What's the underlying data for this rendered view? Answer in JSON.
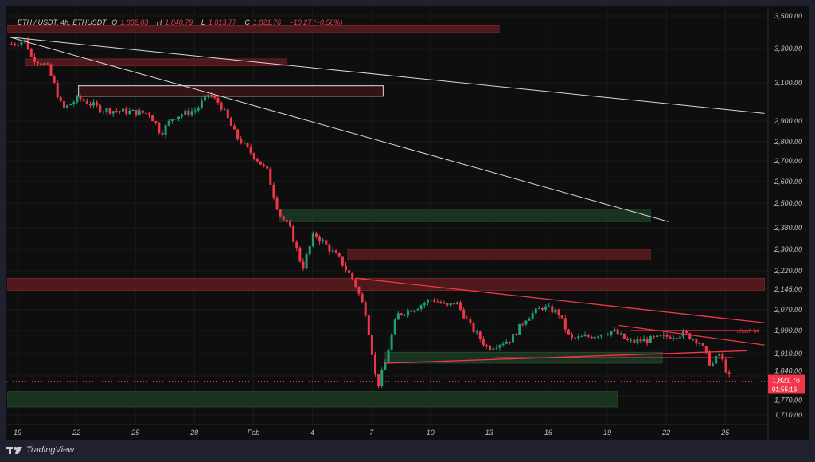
{
  "header": {
    "symbol": "ETH / USDT, 4h, ETHUSDT",
    "open_label": "O",
    "open": "1,832.03",
    "high_label": "H",
    "high": "1,840.79",
    "low_label": "L",
    "low": "1,813.77",
    "close_label": "C",
    "close": "1,821.76",
    "change": "−10.27 (−0.56%)"
  },
  "price_label": {
    "price": "1,821.76",
    "countdown": "01:55:16"
  },
  "annotation": "choch h4",
  "footer": {
    "brand": "TradingView"
  },
  "colors": {
    "up": "#1f9f72",
    "down": "#f2364a",
    "bg": "#0e0e0e",
    "zone_red": "#5a1b1e",
    "zone_green": "#1c3a23"
  },
  "chart_data": {
    "type": "candlestick",
    "title": "ETH / USDT, 4h",
    "y_ticks": [
      "3,500.00",
      "3,300.00",
      "3,100.00",
      "2,900.00",
      "2,800.00",
      "2,700.00",
      "2,600.00",
      "2,500.00",
      "2,380.00",
      "2,300.00",
      "2,220.00",
      "2,145.00",
      "2,070.00",
      "1,990.00",
      "1,910.00",
      "1,840.00",
      "1,770.00",
      "1,710.00"
    ],
    "y_tick_values": [
      3500,
      3300,
      3100,
      2900,
      2800,
      2700,
      2600,
      2500,
      2380,
      2300,
      2220,
      2145,
      2070,
      1990,
      1910,
      1840,
      1770,
      1710
    ],
    "x_ticks": [
      "19",
      "22",
      "25",
      "28",
      "Feb",
      "4",
      "7",
      "10",
      "13",
      "16",
      "19",
      "22",
      "25"
    ],
    "price_path_day_price": [
      [
        18.8,
        3330
      ],
      [
        19.4,
        3350
      ],
      [
        19.7,
        3250
      ],
      [
        20.5,
        3200
      ],
      [
        21.3,
        2960
      ],
      [
        22.1,
        3020
      ],
      [
        23.3,
        2960
      ],
      [
        25.7,
        2940
      ],
      [
        26.3,
        2840
      ],
      [
        26.9,
        2920
      ],
      [
        28.1,
        2960
      ],
      [
        28.7,
        3040
      ],
      [
        29.3,
        2990
      ],
      [
        30.1,
        2830
      ],
      [
        30.9,
        2740
      ],
      [
        31.7,
        2650
      ],
      [
        32.3,
        2450
      ],
      [
        32.9,
        2370
      ],
      [
        33.5,
        2230
      ],
      [
        34.1,
        2360
      ],
      [
        34.9,
        2300
      ],
      [
        35.5,
        2250
      ],
      [
        36.1,
        2180
      ],
      [
        36.7,
        2060
      ],
      [
        37.3,
        1800
      ],
      [
        37.7,
        1880
      ],
      [
        38.3,
        2050
      ],
      [
        39.3,
        2080
      ],
      [
        40.1,
        2110
      ],
      [
        40.9,
        2080
      ],
      [
        41.3,
        2100
      ],
      [
        42.1,
        2000
      ],
      [
        42.9,
        1930
      ],
      [
        44.1,
        1960
      ],
      [
        44.9,
        2040
      ],
      [
        45.7,
        2080
      ],
      [
        46.5,
        2060
      ],
      [
        47.1,
        1960
      ],
      [
        48.1,
        1970
      ],
      [
        49.3,
        1990
      ],
      [
        50.1,
        1950
      ],
      [
        51.3,
        1960
      ],
      [
        52.9,
        1980
      ],
      [
        53.7,
        1950
      ],
      [
        54.3,
        1870
      ],
      [
        54.7,
        1910
      ],
      [
        55.3,
        1821.76
      ]
    ],
    "zones": [
      {
        "type": "supply",
        "from_day": 18.5,
        "to_day": 43.5,
        "low": 3400,
        "high": 3440
      },
      {
        "type": "supply",
        "from_day": 19.4,
        "to_day": 32.7,
        "low": 3200,
        "high": 3240
      },
      {
        "type": "outlined",
        "from_day": 22.1,
        "to_day": 37.6,
        "low": 3030,
        "high": 3085
      },
      {
        "type": "demand",
        "from_day": 32.3,
        "to_day": 51.2,
        "low": 2410,
        "high": 2470
      },
      {
        "type": "supply",
        "from_day": 35.8,
        "to_day": 51.2,
        "low": 2260,
        "high": 2300
      },
      {
        "type": "supply",
        "from_day": 18.5,
        "to_day": 57,
        "low": 2140,
        "high": 2190
      },
      {
        "type": "demand",
        "from_day": 37.7,
        "to_day": 51.8,
        "low": 1880,
        "high": 1915
      },
      {
        "type": "demand",
        "from_day": 18.5,
        "to_day": 49.5,
        "low": 1735,
        "high": 1785
      }
    ],
    "trendlines": [
      {
        "color": "white",
        "from": [
          18.6,
          3370
        ],
        "to": [
          57,
          2940
        ]
      },
      {
        "color": "white",
        "from": [
          18.6,
          3370
        ],
        "to": [
          52.1,
          2410
        ]
      },
      {
        "color": "red",
        "from": [
          36.2,
          2190
        ],
        "to": [
          57,
          2020
        ]
      },
      {
        "color": "red",
        "from": [
          37.7,
          1880
        ],
        "to": [
          56.1,
          1920
        ]
      },
      {
        "color": "red",
        "from": [
          49.6,
          2010
        ],
        "to": [
          57,
          1940
        ]
      },
      {
        "color": "red",
        "from": [
          50.2,
          1990
        ],
        "to": [
          56.7,
          1990
        ]
      },
      {
        "color": "red",
        "from": [
          43.3,
          1897
        ],
        "to": [
          55.4,
          1897
        ]
      }
    ]
  }
}
